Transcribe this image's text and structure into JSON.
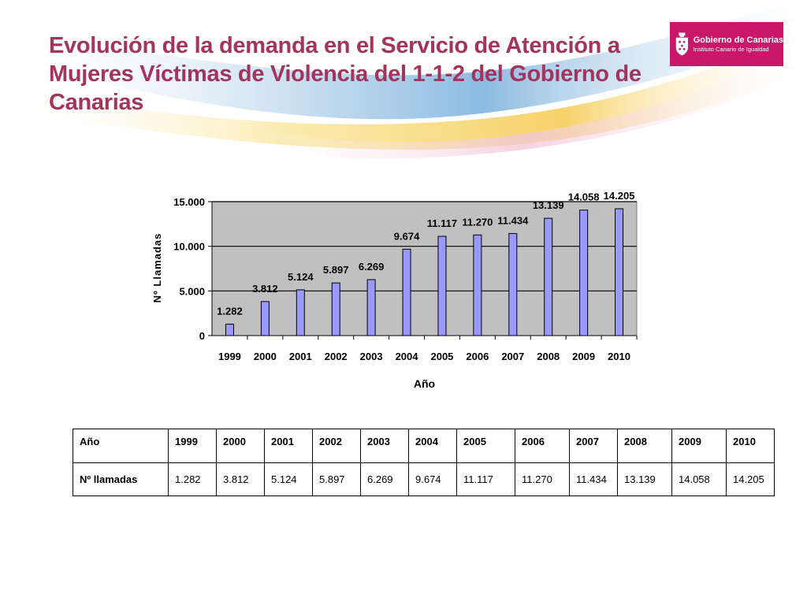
{
  "title_lines": [
    "Evolución de la demanda en el Servicio de Atención a",
    "Mujeres Víctimas de Violencia del 1-1-2 del Gobierno de",
    "Canarias"
  ],
  "logo": {
    "main": "Gobierno de Canarias",
    "sub": "Instituto Canario de Igualdad"
  },
  "colors": {
    "title": "#a3345e",
    "logo_bg": "#c9176a",
    "bar_fill": "#9999ff",
    "plot_bg": "#c0c0c0"
  },
  "chart_data": {
    "type": "bar",
    "categories": [
      "1999",
      "2000",
      "2001",
      "2002",
      "2003",
      "2004",
      "2005",
      "2006",
      "2007",
      "2008",
      "2009",
      "2010"
    ],
    "values": [
      1282,
      3812,
      5124,
      5897,
      6269,
      9674,
      11117,
      11270,
      11434,
      13139,
      14058,
      14205
    ],
    "data_labels": [
      "1.282",
      "3.812",
      "5.124",
      "5.897",
      "6.269",
      "9.674",
      "11.117",
      "11.270",
      "11.434",
      "13.139",
      "14.058",
      "14.205"
    ],
    "xlabel": "Año",
    "ylabel": "Nº Llamadas",
    "ylim": [
      0,
      15000
    ],
    "yticks": [
      0,
      5000,
      10000,
      15000
    ],
    "ytick_labels": [
      "0",
      "5.000",
      "10.000",
      "15.000"
    ],
    "grid": true,
    "legend": "none"
  },
  "table": {
    "header_label": "Año",
    "row_label": "Nº llamadas",
    "years": [
      "1999",
      "2000",
      "2001",
      "2002",
      "2003",
      "2004",
      "2005",
      "2006",
      "2007",
      "2008",
      "2009",
      "2010"
    ],
    "values": [
      "1.282",
      "3.812",
      "5.124",
      "5.897",
      "6.269",
      "9.674",
      "11.117",
      "11.270",
      "11.434",
      "13.139",
      "14.058",
      "14.205"
    ]
  }
}
